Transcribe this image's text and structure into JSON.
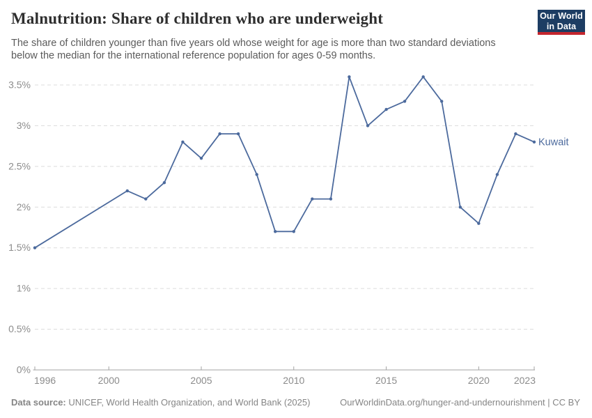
{
  "header": {
    "title": "Malnutrition: Share of children who are underweight",
    "subtitle": "The share of children younger than five years old whose weight for age is more than two standard deviations below the median for the international reference population for ages 0-59 months.",
    "logo": {
      "line1": "Our World",
      "line2": "in Data"
    }
  },
  "theme": {
    "title_color": "#2e2e2e",
    "subtitle_color": "#5b5b5b",
    "axis_text_color": "#8c8c8c",
    "axis_line_color": "#a3a3a3",
    "grid_color": "#dcdcdc",
    "footer_color": "#858585",
    "line_color": "#4c6a9d",
    "logo_bg": "#1d3d63",
    "logo_accent": "#c4262e"
  },
  "chart_data": {
    "type": "line",
    "title": "Malnutrition: Share of children who are underweight",
    "xlabel": "",
    "ylabel": "",
    "unit": "%",
    "grid": true,
    "xlim": [
      1996,
      2023
    ],
    "ylim": [
      0,
      3.5
    ],
    "x_ticks": [
      1996,
      2000,
      2005,
      2010,
      2015,
      2020,
      2023
    ],
    "x_tick_labels": [
      "1996",
      "2000",
      "2005",
      "2010",
      "2015",
      "2020",
      "2023"
    ],
    "y_ticks": [
      0,
      0.5,
      1,
      1.5,
      2,
      2.5,
      3,
      3.5
    ],
    "y_tick_labels": [
      "0%",
      "0.5%",
      "1%",
      "1.5%",
      "2%",
      "2.5%",
      "3%",
      "3.5%"
    ],
    "series": [
      {
        "name": "Kuwait",
        "color": "#4c6a9d",
        "years": [
          1996,
          2001,
          2002,
          2003,
          2004,
          2005,
          2006,
          2007,
          2008,
          2009,
          2010,
          2011,
          2012,
          2013,
          2014,
          2015,
          2016,
          2017,
          2018,
          2019,
          2020,
          2021,
          2022,
          2023
        ],
        "values": [
          1.5,
          2.2,
          2.1,
          2.3,
          2.8,
          2.6,
          2.9,
          2.9,
          2.4,
          1.7,
          1.7,
          2.1,
          2.1,
          3.6,
          3.0,
          3.2,
          3.3,
          3.6,
          3.3,
          2.0,
          1.8,
          2.4,
          2.9,
          2.8
        ]
      }
    ],
    "legend_position": "end-of-line-label"
  },
  "footer": {
    "source_label": "Data source:",
    "source_text": "UNICEF, World Health Organization, and World Bank (2025)",
    "link_text": "OurWorldinData.org/hunger-and-undernourishment | CC BY"
  }
}
